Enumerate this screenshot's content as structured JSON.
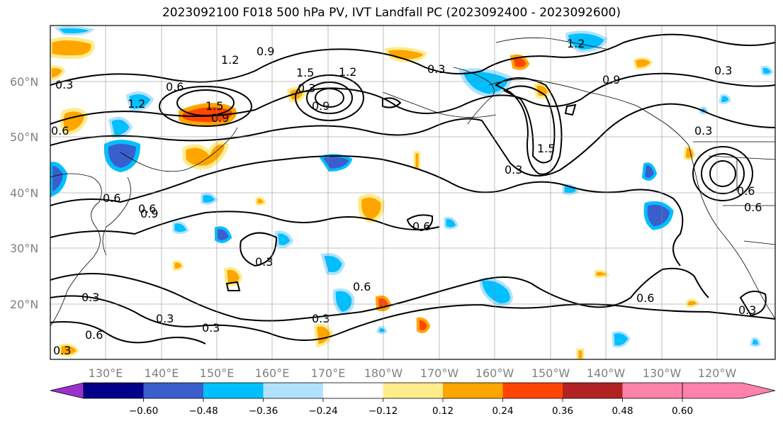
{
  "title": "2023092100 F018 500 hPa PV, IVT Landfall PC (2023092400 - 2023092600)",
  "lat_labels": [
    "60°N",
    "50°N",
    "40°N",
    "30°N",
    "20°N"
  ],
  "lon_labels": [
    "130°E",
    "140°E",
    "150°E",
    "160°E",
    "170°E",
    "180°W",
    "170°W",
    "160°W",
    "150°W",
    "140°W",
    "130°W",
    "120°W"
  ],
  "colorbar": {
    "ticks": [
      "−0.60",
      "−0.48",
      "−0.36",
      "−0.24",
      "−0.12",
      "0.12",
      "0.24",
      "0.36",
      "0.48",
      "0.60"
    ],
    "colors": [
      "#9932cc",
      "#00008b",
      "#3a5fcd",
      "#00bfff",
      "#b0e2ff",
      "#ffffff",
      "#ffec8b",
      "#ffa500",
      "#ff4500",
      "#b22222",
      "#ff82ab"
    ]
  },
  "contour_labels": [
    "1.2",
    "0.9",
    "0.6",
    "0.3",
    "1.5",
    "0.3",
    "0.6",
    "0.9",
    "1.2",
    "1.5",
    "0.6",
    "0.3",
    "0.6",
    "0.9",
    "0.3",
    "0.6",
    "0.6",
    "0.3",
    "0.3",
    "0.3",
    "0.3",
    "0.6",
    "0.6",
    "0.3",
    "0.6",
    "0.3",
    "1.2",
    "0.9",
    "0.3",
    "1.5",
    "0.9",
    "1.2",
    "0.3",
    "0.6",
    "0.3"
  ]
}
